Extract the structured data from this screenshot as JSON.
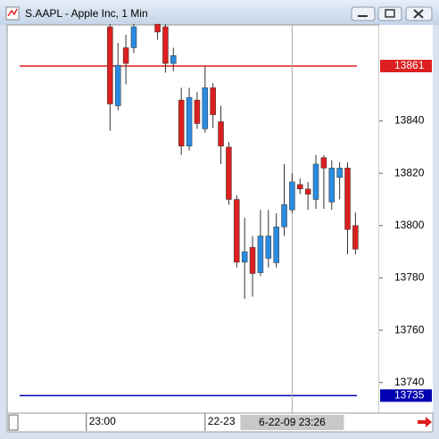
{
  "chart_data": {
    "type": "candlestick",
    "title": "S.AAPL - Apple Inc, 1 Min",
    "x": [
      "23:03",
      "23:04",
      "23:05",
      "23:06",
      "23:09",
      "23:10",
      "23:11",
      "23:12",
      "23:13",
      "23:14",
      "23:15",
      "23:16",
      "23:17",
      "23:18",
      "23:19",
      "23:20",
      "23:21",
      "23:22",
      "23:23",
      "23:24",
      "23:25",
      "23:26",
      "23:27",
      "23:28",
      "23:29",
      "23:30",
      "23:31",
      "23:32",
      "23:33",
      "23:34"
    ],
    "open": [
      13876,
      13845.8,
      13868,
      13868,
      13877,
      13876,
      13862,
      13848,
      13830.4,
      13848,
      13837,
      13852.7,
      13839.7,
      13830,
      13810,
      13786,
      13791.7,
      13782,
      13787.5,
      13785.8,
      13799.5,
      13806,
      13815.7,
      13814,
      13810,
      13826,
      13809,
      13818.4,
      13822,
      13800
    ],
    "high": [
      13877,
      13869.8,
      13873,
      13877,
      13877,
      13877,
      13868,
      13852.7,
      13852.7,
      13851,
      13861,
      13854.4,
      13845.8,
      13832,
      13811.5,
      13803,
      13796,
      13806,
      13806,
      13804.7,
      13823.5,
      13820,
      13818,
      13816.7,
      13827,
      13827,
      13825,
      13824.2,
      13824.2,
      13805
    ],
    "low": [
      13836.2,
      13844.1,
      13854,
      13866,
      13871,
      13858.5,
      13859,
      13827,
      13828.7,
      13837,
      13835.5,
      13837.3,
      13823.5,
      13808,
      13784,
      13772,
      13772.8,
      13780.7,
      13784,
      13784,
      13796,
      13804.7,
      13812,
      13806,
      13806.4,
      13806.4,
      13806,
      13810,
      13789,
      13789
    ],
    "close": [
      13846.5,
      13861.3,
      13862,
      13876,
      13874,
      13862,
      13865,
      13830.4,
      13849,
      13839,
      13852.7,
      13842.4,
      13830.4,
      13810,
      13786,
      13790,
      13781.7,
      13796,
      13796,
      13799.5,
      13808,
      13816.7,
      13814,
      13812,
      13823.5,
      13822,
      13822,
      13822,
      13798.5,
      13791
    ],
    "up_color": "#2a8be0",
    "down_color": "#dd1f1f",
    "xlim": [
      "22:50",
      "23:37"
    ],
    "xticks": [
      "23:00",
      {
        "value": "23:15",
        "label": "22-23"
      }
    ],
    "ylim": [
      13728.3,
      13876.7
    ],
    "yticks": [
      13740,
      13760,
      13780,
      13800,
      13820,
      13840
    ],
    "hlines": [
      {
        "value": 13861,
        "color": "#dd1f1f"
      },
      {
        "value": 13735,
        "color": "#0000b0"
      }
    ],
    "cursor": {
      "x": "23:26",
      "label": "6-22-09 23:26"
    }
  }
}
